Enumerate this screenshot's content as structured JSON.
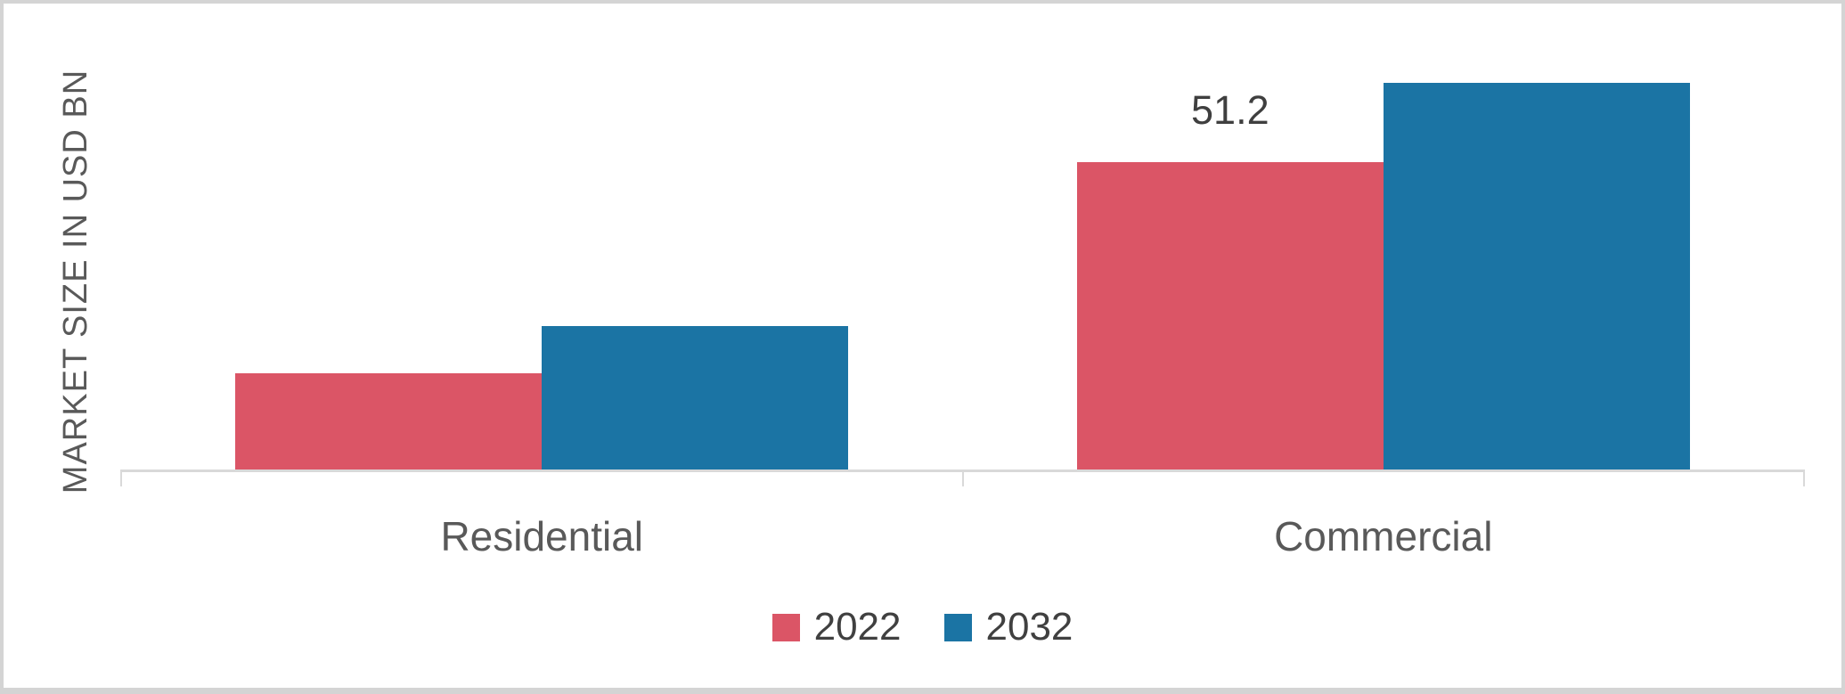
{
  "chart_data": {
    "type": "bar",
    "title": "",
    "ylabel": "MARKET SIZE IN USD BN",
    "xlabel": "",
    "categories": [
      "Residential",
      "Commercial"
    ],
    "series": [
      {
        "name": "2022",
        "color": "#db5566",
        "values": [
          16.0,
          51.2
        ]
      },
      {
        "name": "2032",
        "color": "#1b74a4",
        "values": [
          23.9,
          64.3
        ]
      }
    ],
    "data_labels": [
      {
        "series": "2022",
        "category": "Commercial",
        "text": "51.2"
      }
    ],
    "ylim": [
      0,
      70
    ],
    "grid": false,
    "y_axis_ticks_visible": false,
    "legend_position": "bottom",
    "axis_color": "#d9d9d9",
    "text_color": "#595959",
    "label_text_color": "#3f3f3f"
  }
}
